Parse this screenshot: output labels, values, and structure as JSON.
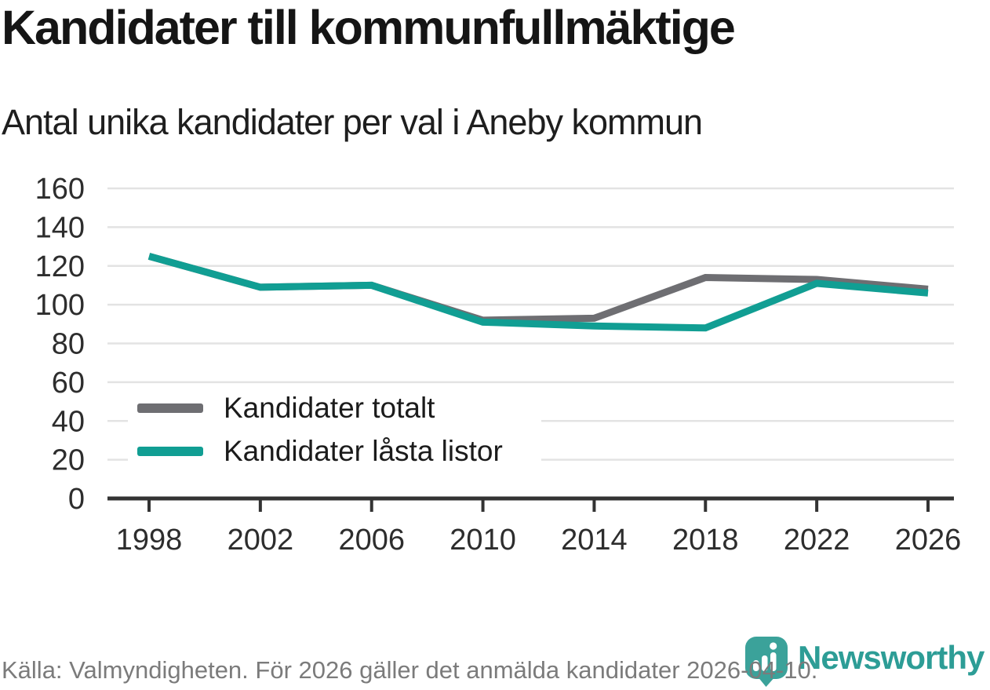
{
  "header": {
    "title": "Kandidater till kommunfullmäktige",
    "subtitle": "Antal unika kandidater per val i Aneby kommun"
  },
  "chart_data": {
    "type": "line",
    "title": "Kandidater till kommunfullmäktige",
    "subtitle": "Antal unika kandidater per val i Aneby kommun",
    "x": [
      1998,
      2002,
      2006,
      2010,
      2014,
      2018,
      2022,
      2026
    ],
    "series": [
      {
        "name": "Kandidater totalt",
        "color": "#6e6e72",
        "values": [
          125,
          109,
          110,
          92,
          93,
          114,
          113,
          108
        ]
      },
      {
        "name": "Kandidater låsta listor",
        "color": "#119e93",
        "values": [
          125,
          109,
          110,
          91,
          89,
          88,
          111,
          106
        ]
      }
    ],
    "xlabel": "",
    "ylabel": "",
    "ylim": [
      0,
      160
    ],
    "ytick_step": 20,
    "grid": true,
    "legend_position": "inside-bottom-left"
  },
  "footer": {
    "source_text": "Källa: Valmyndigheten. För 2026 gäller det anmälda kandidater 2026-04-10.",
    "brand_name": "Newsworthy"
  },
  "colors": {
    "line_gray": "#6e6e72",
    "line_teal": "#119e93",
    "grid": "#e3e3e3",
    "axis": "#333333",
    "tick_text": "#2d2d2d",
    "muted_text": "#7b7b7b",
    "logo_teal": "#3ba29a",
    "wordmark_teal": "#2d9d96"
  }
}
